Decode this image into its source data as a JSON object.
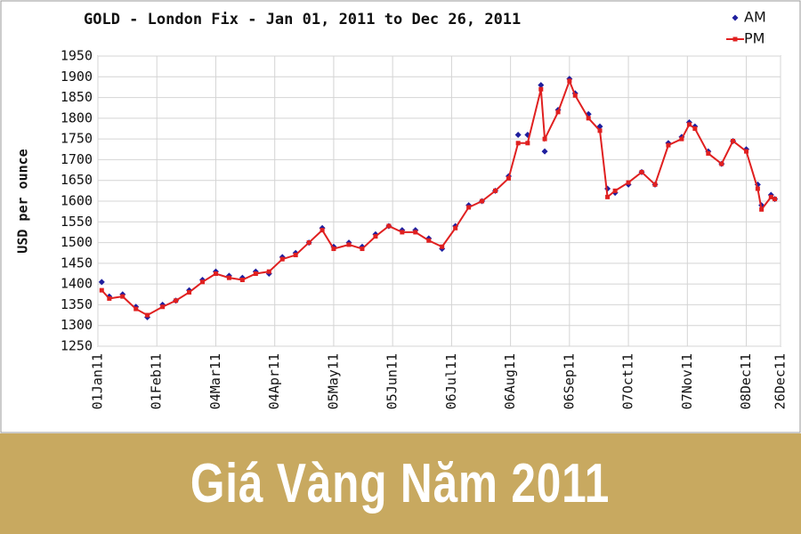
{
  "chart_data": {
    "type": "line",
    "title": "GOLD - London Fix - Jan 01, 2011 to Dec 26, 2011",
    "y_label": "USD per ounce",
    "grid": true,
    "legend": "top-right",
    "x": [
      "2011-01-03",
      "2011-01-07",
      "2011-01-14",
      "2011-01-21",
      "2011-01-27",
      "2011-02-04",
      "2011-02-11",
      "2011-02-18",
      "2011-02-25",
      "2011-03-04",
      "2011-03-11",
      "2011-03-18",
      "2011-03-25",
      "2011-04-01",
      "2011-04-08",
      "2011-04-15",
      "2011-04-22",
      "2011-04-29",
      "2011-05-05",
      "2011-05-13",
      "2011-05-20",
      "2011-05-27",
      "2011-06-03",
      "2011-06-10",
      "2011-06-17",
      "2011-06-24",
      "2011-07-01",
      "2011-07-08",
      "2011-07-15",
      "2011-07-22",
      "2011-07-29",
      "2011-08-05",
      "2011-08-10",
      "2011-08-15",
      "2011-08-22",
      "2011-08-24",
      "2011-08-31",
      "2011-09-06",
      "2011-09-09",
      "2011-09-16",
      "2011-09-22",
      "2011-09-26",
      "2011-09-30",
      "2011-10-07",
      "2011-10-14",
      "2011-10-21",
      "2011-10-28",
      "2011-11-04",
      "2011-11-08",
      "2011-11-11",
      "2011-11-18",
      "2011-11-25",
      "2011-12-01",
      "2011-12-08",
      "2011-12-14",
      "2011-12-16",
      "2011-12-21",
      "2011-12-23"
    ],
    "series": [
      {
        "name": "AM",
        "color": "#1f1f9e",
        "marker": "diamond",
        "line": false,
        "values": [
          1405,
          1370,
          1375,
          1345,
          1320,
          1350,
          1360,
          1385,
          1410,
          1430,
          1420,
          1415,
          1430,
          1425,
          1465,
          1475,
          1500,
          1535,
          1490,
          1500,
          1490,
          1520,
          1540,
          1530,
          1530,
          1510,
          1485,
          1540,
          1590,
          1600,
          1625,
          1660,
          1760,
          1760,
          1880,
          1720,
          1820,
          1895,
          1860,
          1810,
          1780,
          1630,
          1620,
          1640,
          1670,
          1640,
          1740,
          1755,
          1790,
          1780,
          1720,
          1690,
          1745,
          1725,
          1640,
          1590,
          1615,
          1605
        ]
      },
      {
        "name": "PM",
        "color": "#e02020",
        "marker": "square",
        "line": true,
        "values": [
          1385,
          1365,
          1370,
          1340,
          1325,
          1345,
          1360,
          1380,
          1405,
          1425,
          1415,
          1410,
          1425,
          1430,
          1460,
          1470,
          1500,
          1530,
          1485,
          1495,
          1485,
          1515,
          1540,
          1525,
          1525,
          1505,
          1490,
          1535,
          1585,
          1600,
          1625,
          1655,
          1740,
          1740,
          1870,
          1750,
          1815,
          1890,
          1855,
          1800,
          1770,
          1610,
          1625,
          1645,
          1670,
          1640,
          1735,
          1750,
          1785,
          1775,
          1715,
          1690,
          1745,
          1720,
          1630,
          1580,
          1610,
          1605
        ]
      }
    ],
    "xlim": [
      "2011-01-01",
      "2011-12-26"
    ],
    "xticks": [
      {
        "value": "2011-01-01",
        "label": "01Jan11"
      },
      {
        "value": "2011-02-01",
        "label": "01Feb11"
      },
      {
        "value": "2011-03-04",
        "label": "04Mar11"
      },
      {
        "value": "2011-04-04",
        "label": "04Apr11"
      },
      {
        "value": "2011-05-05",
        "label": "05May11"
      },
      {
        "value": "2011-06-05",
        "label": "05Jun11"
      },
      {
        "value": "2011-07-06",
        "label": "06Jul11"
      },
      {
        "value": "2011-08-06",
        "label": "06Aug11"
      },
      {
        "value": "2011-09-06",
        "label": "06Sep11"
      },
      {
        "value": "2011-10-07",
        "label": "07Oct11"
      },
      {
        "value": "2011-11-07",
        "label": "07Nov11"
      },
      {
        "value": "2011-12-08",
        "label": "08Dec11"
      },
      {
        "value": "2011-12-26",
        "label": "26Dec11"
      }
    ],
    "ylim": [
      1250,
      1950
    ],
    "yticks": [
      1250,
      1300,
      1350,
      1400,
      1450,
      1500,
      1550,
      1600,
      1650,
      1700,
      1750,
      1800,
      1850,
      1900,
      1950
    ]
  },
  "banner": {
    "text": "Giá Vàng Năm 2011"
  }
}
